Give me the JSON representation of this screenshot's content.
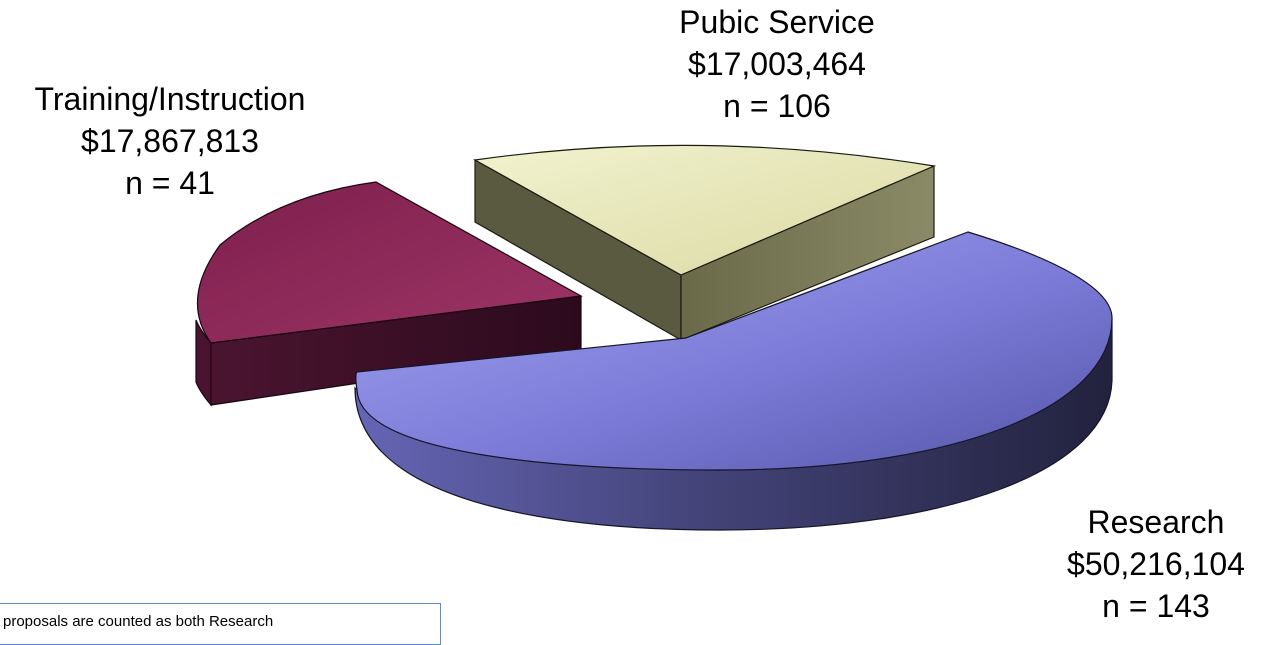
{
  "chart_data": {
    "type": "pie",
    "style": "3d-exploded",
    "slices": [
      {
        "id": "training",
        "category": "Training/Instruction",
        "amount_label": "$17,867,813",
        "count_label": "n = 41",
        "value": 17867813,
        "count": 41,
        "colors": {
          "top": "#8e2a5a",
          "edge": "#5a1636",
          "side": "#3a0f25"
        }
      },
      {
        "id": "public-service",
        "category": "Pubic Service",
        "amount_label": "$17,003,464",
        "count_label": "n = 106",
        "value": 17003464,
        "count": 106,
        "colors": {
          "top": "#e8e8b8",
          "edge": "#8a8a68",
          "side": "#5a5a40"
        }
      },
      {
        "id": "research",
        "category": "Research",
        "amount_label": "$50,216,104",
        "count_label": "n = 143",
        "value": 50216104,
        "count": 143,
        "colors": {
          "top": "#8f8fe6",
          "edge": "#4a4a8a",
          "side": "#2e2e5a"
        }
      }
    ],
    "legend": "none"
  },
  "footnote": {
    "text": "proposals are  counted as both Research"
  }
}
